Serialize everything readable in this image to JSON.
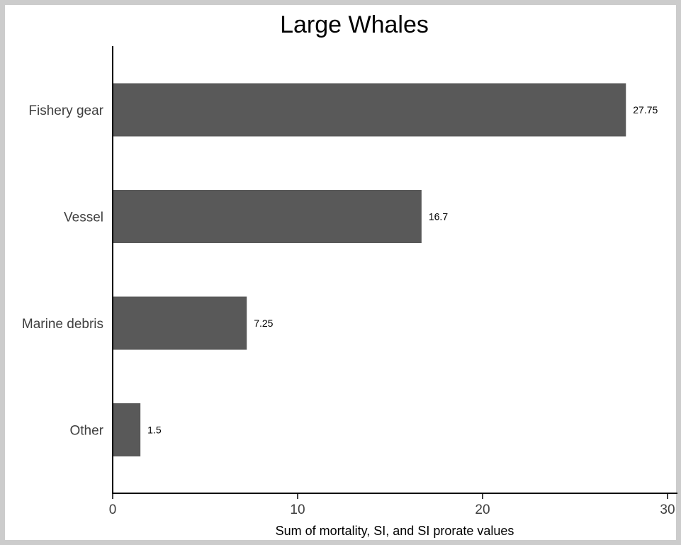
{
  "chart_data": {
    "type": "bar",
    "orientation": "horizontal",
    "title": "Large Whales",
    "xlabel": "Sum of mortality, SI, and SI prorate values",
    "ylabel": "",
    "categories": [
      "Fishery gear",
      "Vessel",
      "Marine debris",
      "Other"
    ],
    "values": [
      27.75,
      16.7,
      7.25,
      1.5
    ],
    "data_labels": [
      "27.75",
      "16.7",
      "7.25",
      "1.5"
    ],
    "xlim": [
      0,
      30
    ],
    "x_ticks": [
      0,
      10,
      20,
      30
    ],
    "x_tick_labels": [
      "0",
      "10",
      "20",
      "30"
    ],
    "bar_color": "#595959",
    "grid": false,
    "legend": "none"
  }
}
